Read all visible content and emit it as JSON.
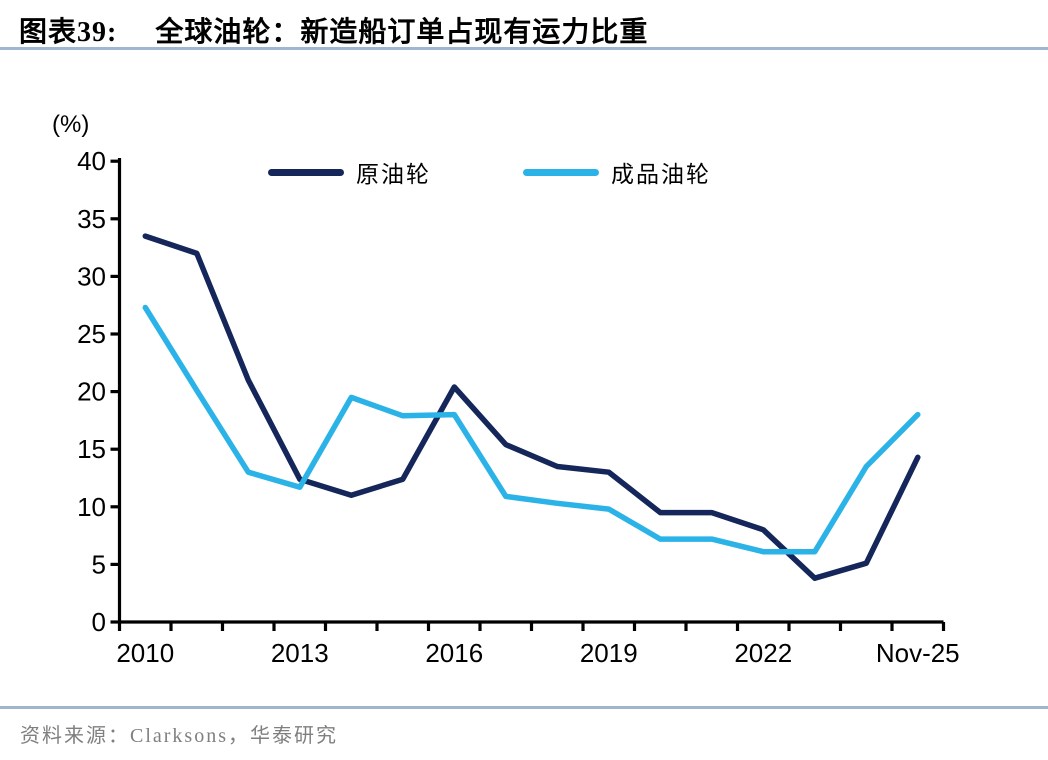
{
  "header": {
    "figure_label": "图表39:",
    "title": "全球油轮：新造船订单占现有运力比重"
  },
  "footer": {
    "source": "资料来源：Clarksons，华泰研究"
  },
  "colors": {
    "divider": "#a0b6ce",
    "axis": "#000000",
    "tick_text": "#000000",
    "source_text": "#7f7f7f",
    "crude_line": "#14265a",
    "product_line": "#2bb3e8"
  },
  "chart_data": {
    "type": "line",
    "unit_label": "(%)",
    "grid": false,
    "legend_position": "top-center",
    "ylim": [
      0,
      40
    ],
    "yticks": [
      0,
      5,
      10,
      15,
      20,
      25,
      30,
      35,
      40
    ],
    "categories": [
      "2010",
      "2011",
      "2012",
      "2013",
      "2014",
      "2015",
      "2016",
      "2017",
      "2018",
      "2019",
      "2020",
      "2021",
      "2022",
      "2023",
      "2024",
      "Nov-25"
    ],
    "xtick_labels": [
      {
        "index": 0,
        "label": "2010"
      },
      {
        "index": 3,
        "label": "2013"
      },
      {
        "index": 6,
        "label": "2016"
      },
      {
        "index": 9,
        "label": "2019"
      },
      {
        "index": 12,
        "label": "2022"
      },
      {
        "index": 15,
        "label": "Nov-25"
      }
    ],
    "series": [
      {
        "name": "原油轮",
        "color": "#14265a",
        "values": [
          33.5,
          32.0,
          21.0,
          12.4,
          11.0,
          12.4,
          20.4,
          15.4,
          13.5,
          13.0,
          9.5,
          9.5,
          8.0,
          3.8,
          5.1,
          14.3
        ]
      },
      {
        "name": "成品油轮",
        "color": "#2bb3e8",
        "values": [
          27.3,
          20.1,
          13.0,
          11.7,
          19.5,
          17.9,
          18.0,
          10.9,
          10.3,
          9.8,
          7.2,
          7.2,
          6.1,
          6.1,
          13.5,
          18.0
        ]
      }
    ]
  }
}
